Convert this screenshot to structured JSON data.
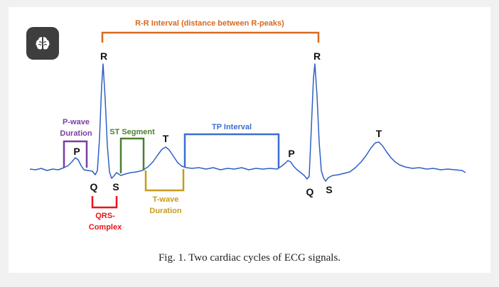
{
  "app_icon": {
    "name": "brain-icon"
  },
  "labels": {
    "rr_interval": "R-R Interval (distance between R-peaks)",
    "r1": "R",
    "r2": "R",
    "p1": "P",
    "p2": "P",
    "q1": "Q",
    "q2": "Q",
    "s1": "S",
    "s2": "S",
    "t1": "T",
    "t2": "T",
    "p_wave_line1": "P-wave",
    "p_wave_line2": "Duration",
    "st_segment": "ST Segment",
    "tp_interval": "TP Interval",
    "qrs_line1": "QRS-",
    "qrs_line2": "Complex",
    "t_wave_line1": "T-wave",
    "t_wave_line2": "Duration"
  },
  "colors": {
    "ecg_signal": "#2f5fc4",
    "rr_interval": "#d9691e",
    "p_wave": "#7a3ea3",
    "st_segment": "#4a7f30",
    "tp_interval": "#3b6ed0",
    "qrs_complex": "#e8141c",
    "t_wave": "#c79b1e"
  },
  "caption": "Fig. 1.  Two cardiac cycles of ECG signals."
}
